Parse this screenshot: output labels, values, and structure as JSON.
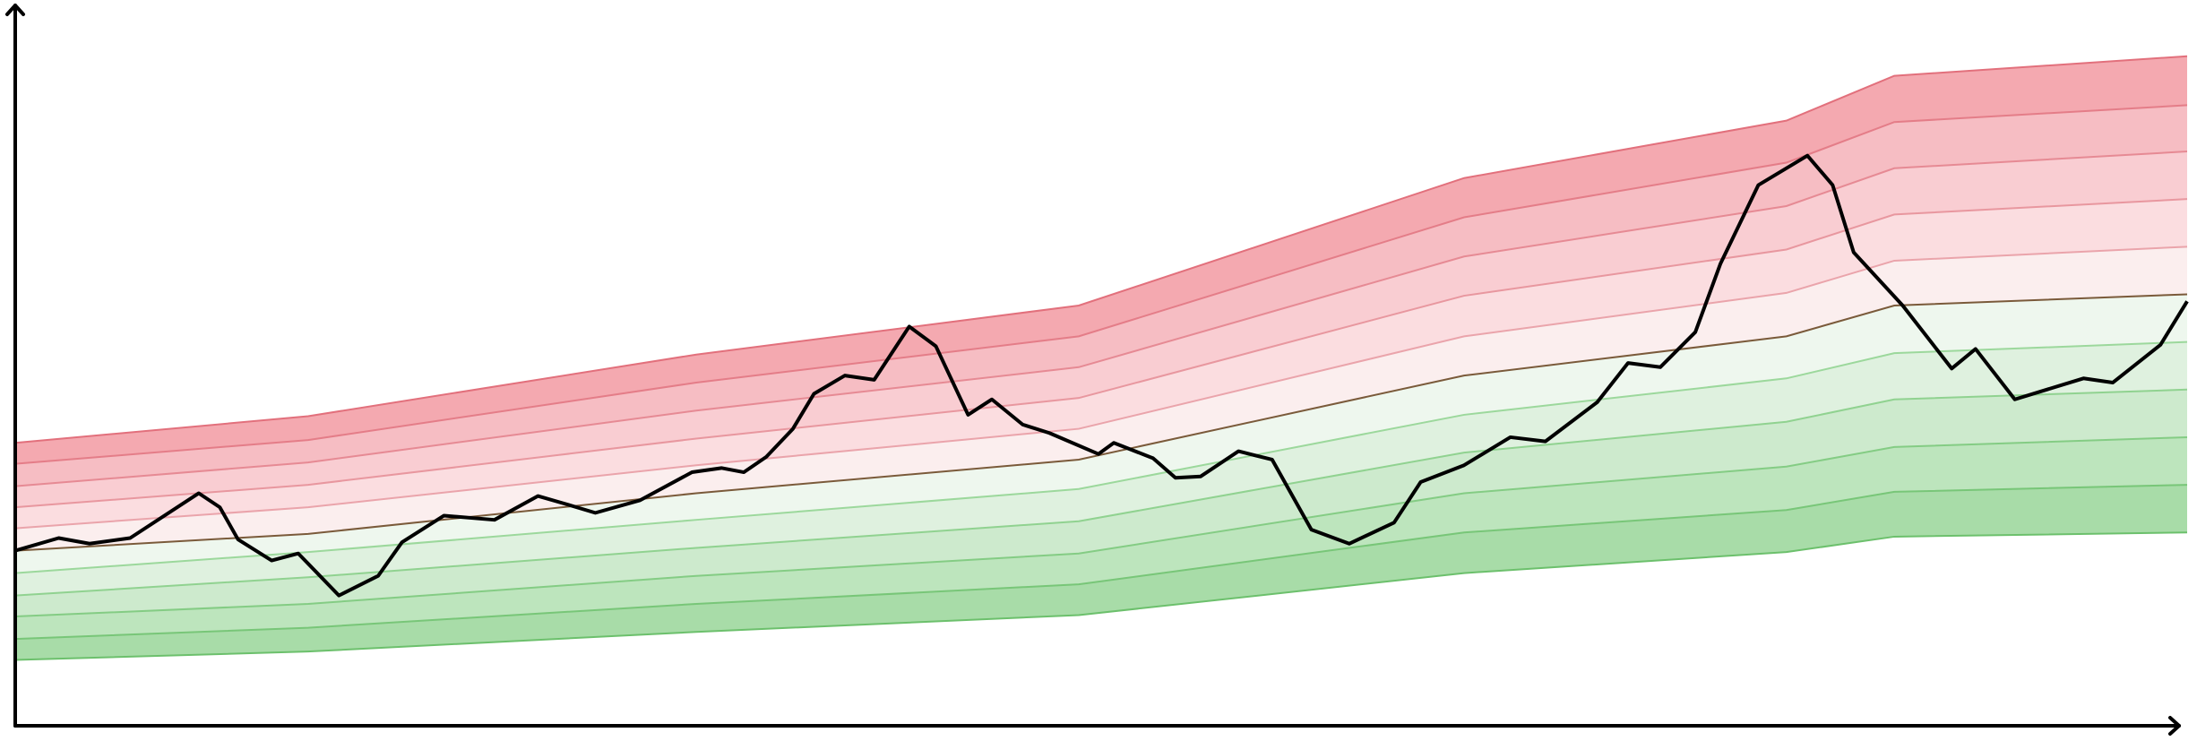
{
  "chart_data": {
    "type": "fan",
    "xlim": [
      0,
      1550
    ],
    "ylim": [
      0,
      513
    ],
    "x": [
      0,
      209,
      486,
      759,
      1034,
      1264,
      1341,
      1550
    ],
    "series": [
      {
        "color": "#6cc06c",
        "values": [
          47,
          53,
          67,
          79,
          109,
          124,
          135,
          138
        ]
      },
      {
        "color": "#78c678",
        "values": [
          62,
          70,
          87,
          101,
          138,
          154,
          167,
          172
        ]
      },
      {
        "color": "#84cc84",
        "values": [
          78,
          87,
          107,
          123,
          166,
          185,
          199,
          206
        ]
      },
      {
        "color": "#90d290",
        "values": [
          93,
          106,
          127,
          146,
          195,
          217,
          233,
          240
        ]
      },
      {
        "color": "#9cd89c",
        "values": [
          109,
          124,
          147,
          169,
          222,
          248,
          266,
          274
        ]
      },
      {
        "color": "#7a5a3a",
        "values": [
          125,
          137,
          166,
          190,
          250,
          278,
          300,
          308
        ]
      },
      {
        "color": "#eaa4ab",
        "values": [
          141,
          156,
          186,
          212,
          278,
          309,
          332,
          342
        ]
      },
      {
        "color": "#e8979f",
        "values": [
          156,
          172,
          205,
          234,
          307,
          340,
          365,
          376
        ]
      },
      {
        "color": "#e68a94",
        "values": [
          171,
          188,
          225,
          256,
          335,
          371,
          398,
          410
        ]
      },
      {
        "color": "#e47d88",
        "values": [
          187,
          204,
          245,
          278,
          363,
          402,
          431,
          443
        ]
      },
      {
        "color": "#e2707c",
        "values": [
          202,
          221,
          265,
          300,
          391,
          432,
          464,
          478
        ]
      }
    ],
    "fills": [
      "#a8dca8",
      "#bde5bd",
      "#cdeacd",
      "#dff1df",
      "#eef7ee",
      "#fbeeee",
      "#fbdde0",
      "#f9cdd2",
      "#f6bdc3",
      "#f4a9b0"
    ],
    "line": {
      "color": "#000000",
      "x": [
        0,
        31,
        53,
        82,
        131,
        146,
        159,
        183,
        202,
        231,
        259,
        276,
        306,
        342,
        373,
        394,
        414,
        446,
        483,
        504,
        520,
        536,
        555,
        570,
        592,
        613,
        638,
        657,
        680,
        697,
        719,
        738,
        773,
        784,
        812,
        828,
        846,
        873,
        897,
        925,
        952,
        984,
        1003,
        1034,
        1067,
        1092,
        1129,
        1151,
        1174,
        1199,
        1217,
        1244,
        1279,
        1297,
        1312,
        1347,
        1382,
        1399,
        1427,
        1476,
        1497,
        1531,
        1550
      ],
      "values": [
        125,
        134,
        130,
        134,
        166,
        156,
        133,
        118,
        123,
        93,
        107,
        131,
        150,
        147,
        164,
        158,
        152,
        161,
        181,
        184,
        181,
        192,
        212,
        237,
        250,
        247,
        285,
        271,
        222,
        233,
        215,
        209,
        194,
        202,
        191,
        177,
        178,
        196,
        190,
        140,
        130,
        145,
        174,
        186,
        206,
        203,
        231,
        259,
        256,
        281,
        330,
        386,
        407,
        386,
        338,
        300,
        255,
        269,
        233,
        248,
        245,
        272,
        303
      ]
    }
  }
}
